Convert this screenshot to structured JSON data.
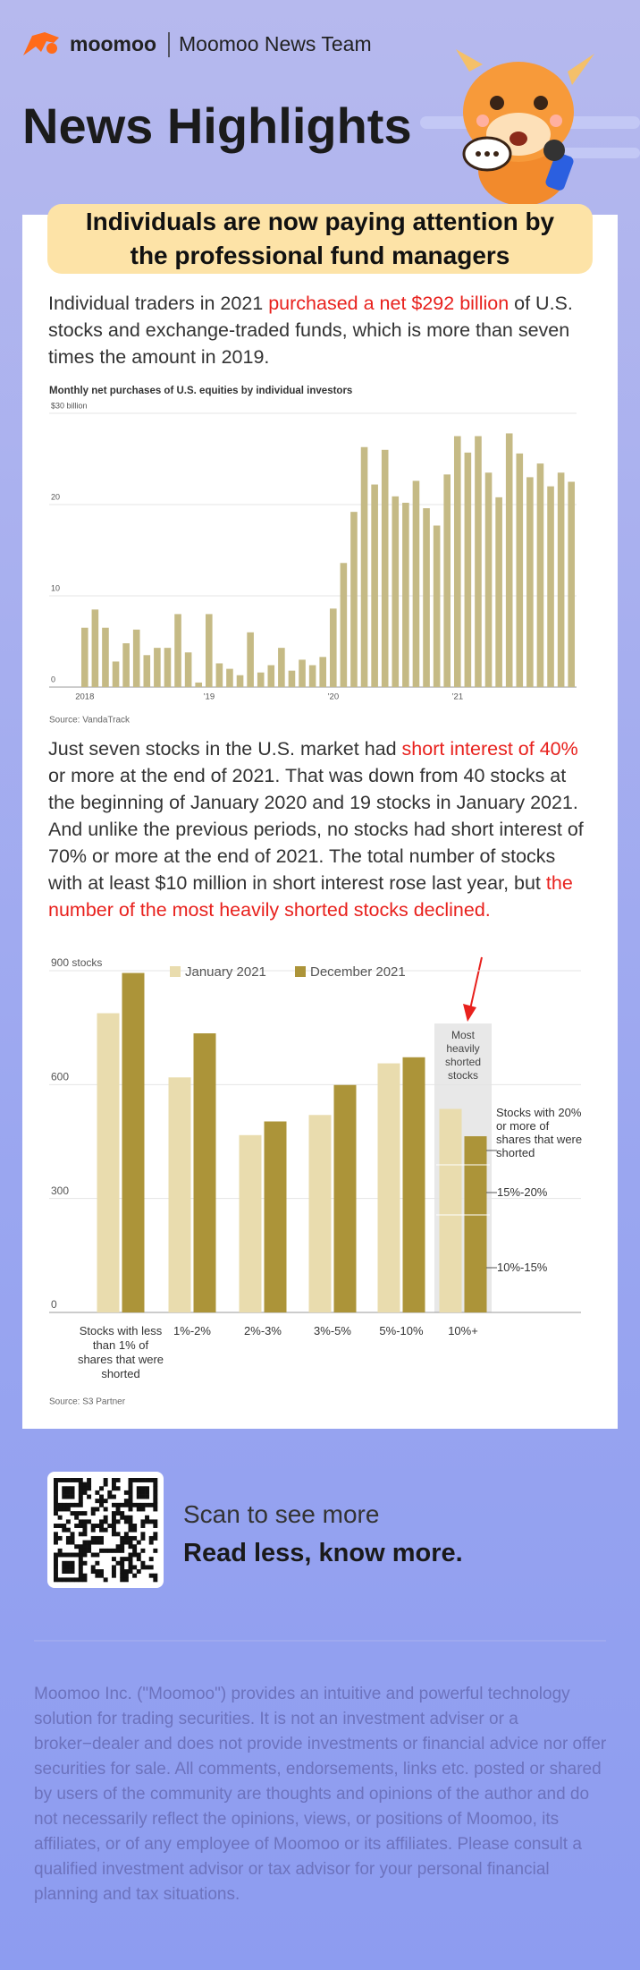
{
  "header": {
    "brand": "moomoo",
    "team": "Moomoo News Team",
    "title": "News Highlights"
  },
  "article": {
    "headline": "Individuals are now paying attention by the professional fund managers",
    "paragraphs": [
      [
        {
          "text": "Individual traders in 2021 ",
          "color": "#333333"
        },
        {
          "text": "purchased a net $292 billion",
          "color": "#e8211d"
        },
        {
          "text": " of U.S. stocks and exchange-traded funds, which is more than seven times the amount in 2019.",
          "color": "#333333"
        }
      ],
      [
        {
          "text": "Just seven stocks in the U.S. market had ",
          "color": "#333333"
        },
        {
          "text": "short interest of 40%",
          "color": "#e8211d"
        },
        {
          "text": " or more at the end of 2021. That was down from 40 stocks at the beginning of January 2020 and 19 stocks in January 2021. And unlike the previous periods, no stocks had short interest of 70% or more at the end of 2021. The total number of stocks with at least $10 million in short interest rose last year, but ",
          "color": "#333333"
        },
        {
          "text": "the number of the most heavily shorted stocks declined.",
          "color": "#e8211d"
        }
      ]
    ]
  },
  "chart_data": [
    {
      "type": "bar",
      "title": "Monthly net purchases of U.S. equities by individual investors",
      "source": "Source: VandaTrack",
      "color": "#c5ba85",
      "grid": true,
      "categories": [
        "2018",
        null,
        null,
        null,
        null,
        null,
        null,
        null,
        null,
        null,
        null,
        null,
        "’19",
        null,
        null,
        null,
        null,
        null,
        null,
        null,
        null,
        null,
        null,
        null,
        "’20",
        null,
        null,
        null,
        null,
        null,
        null,
        null,
        null,
        null,
        null,
        null,
        "’21",
        null,
        null,
        null,
        null,
        null,
        null,
        null,
        null,
        null,
        null,
        null
      ],
      "values": [
        6.5,
        8.5,
        6.5,
        2.8,
        4.8,
        6.3,
        3.5,
        4.3,
        4.3,
        8.0,
        3.8,
        0.5,
        8.0,
        2.6,
        2.0,
        1.3,
        6.0,
        1.6,
        2.4,
        4.3,
        1.8,
        3.0,
        2.4,
        3.3,
        8.6,
        13.6,
        19.2,
        26.3,
        22.2,
        26.0,
        20.9,
        20.2,
        22.6,
        19.6,
        17.7,
        23.3,
        27.5,
        25.7,
        27.5,
        23.5,
        20.8,
        27.8,
        25.6,
        23.0,
        24.5,
        22.0,
        23.5,
        22.5
      ],
      "ylim": [
        0,
        30
      ],
      "yticks": [
        0,
        10,
        20,
        {
          "value": 30,
          "label": "$30 billion"
        }
      ]
    },
    {
      "type": "grouped-bar",
      "source": "Source: S3 Partner",
      "grid": true,
      "categories": [
        "Stocks with less than 1% of shares that were shorted",
        "1%-2%",
        "2%-3%",
        "3%-5%",
        "5%-10%",
        "10%+"
      ],
      "series": [
        {
          "name": "January 2021",
          "color": "#e9dcae",
          "values": [
            788,
            619,
            467,
            520,
            656,
            536
          ]
        },
        {
          "name": "December 2021",
          "color": "#ac9439",
          "values": [
            894,
            735,
            503,
            599,
            672,
            464
          ]
        }
      ],
      "ylim": [
        0,
        900
      ],
      "yticks": [
        0,
        300,
        600,
        {
          "value": 900,
          "label": "900 stocks"
        }
      ],
      "annotations": [
        "Most heavily shorted stocks",
        "Stocks with 20% or more of shares that were shorted",
        "15%-20%",
        "10%-15%"
      ]
    }
  ],
  "footer": {
    "scan": "Scan to see more",
    "slogan": "Read less, know more.",
    "disclaimer": "Moomoo Inc. (\"Moomoo\") provides an intuitive and powerful technology solution for trading securities. It is not an investment adviser or a broker−dealer and does not provide investments or financial advice nor offer securities for sale. All comments, endorsements, links etc. posted or shared by users of the community are thoughts and opinions of the author and do not necessarily reflect the opinions, views, or positions of Moomoo, its affiliates, or of any employee of Moomoo or its affiliates. Please consult a qualified investment advisor or tax advisor for your personal financial planning and tax situations."
  }
}
